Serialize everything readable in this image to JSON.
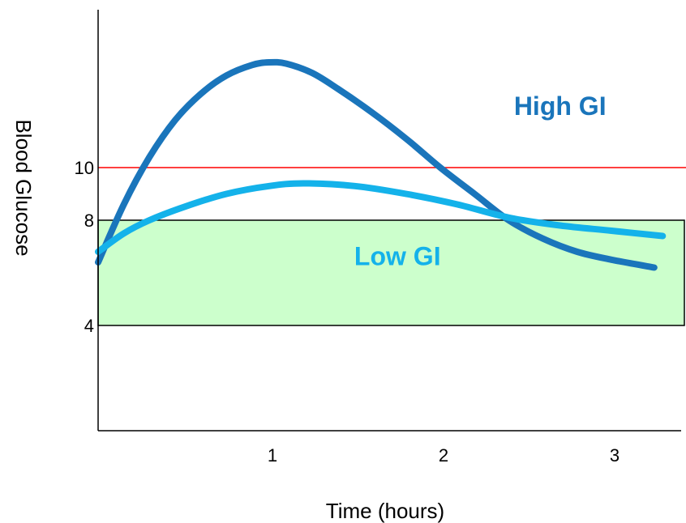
{
  "chart_data": {
    "type": "line",
    "xlabel": "Time (hours)",
    "ylabel": "Blood Glucose",
    "xlim": [
      0,
      3.3
    ],
    "ylim": [
      0,
      16
    ],
    "x_ticks": [
      "1",
      "2",
      "3"
    ],
    "y_ticks": [
      "4",
      "8",
      "10"
    ],
    "grid": false,
    "target_range": {
      "low": 4,
      "high": 8,
      "color": "#ccffcc"
    },
    "threshold": {
      "value": 10,
      "color": "#ff0000"
    },
    "series": [
      {
        "name": "High GI",
        "color": "#1a75bb",
        "x": [
          0,
          0.15,
          0.3,
          0.45,
          0.6,
          0.75,
          0.9,
          1.0,
          1.1,
          1.25,
          1.4,
          1.6,
          1.8,
          2.0,
          2.2,
          2.4,
          2.6,
          2.8,
          3.0,
          3.25
        ],
        "y": [
          6.4,
          8.6,
          10.4,
          11.8,
          12.8,
          13.5,
          13.9,
          14.0,
          13.95,
          13.6,
          13.0,
          12.1,
          11.1,
          10.0,
          9.0,
          8.0,
          7.3,
          6.8,
          6.5,
          6.2
        ]
      },
      {
        "name": "Low GI",
        "color": "#14b2ea",
        "x": [
          0,
          0.15,
          0.3,
          0.5,
          0.75,
          1.0,
          1.2,
          1.5,
          1.8,
          2.1,
          2.4,
          2.7,
          3.0,
          3.3
        ],
        "y": [
          6.8,
          7.5,
          8.0,
          8.5,
          9.0,
          9.3,
          9.4,
          9.3,
          9.0,
          8.6,
          8.1,
          7.8,
          7.6,
          7.4
        ]
      }
    ]
  }
}
